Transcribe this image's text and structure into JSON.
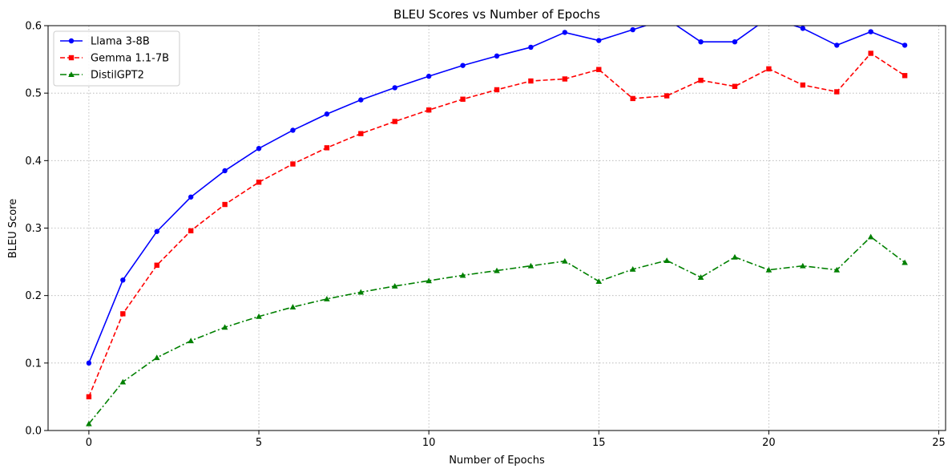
{
  "chart_data": {
    "type": "line",
    "title": "BLEU Scores vs Number of Epochs",
    "xlabel": "Number of Epochs",
    "ylabel": "BLEU Score",
    "xlim": [
      -1.2,
      25.2
    ],
    "ylim": [
      0,
      0.6
    ],
    "xticks": [
      0,
      5,
      10,
      15,
      20,
      25
    ],
    "yticks": [
      0.0,
      0.1,
      0.2,
      0.3,
      0.4,
      0.5,
      0.6
    ],
    "xtick_labels": [
      "0",
      "5",
      "10",
      "15",
      "20",
      "25"
    ],
    "ytick_labels": [
      "0.0",
      "0.1",
      "0.2",
      "0.3",
      "0.4",
      "0.5",
      "0.6"
    ],
    "grid": true,
    "legend_position": "top-left",
    "x": [
      0,
      1,
      2,
      3,
      4,
      5,
      6,
      7,
      8,
      9,
      10,
      11,
      12,
      13,
      14,
      15,
      16,
      17,
      18,
      19,
      20,
      21,
      22,
      23,
      24
    ],
    "series": [
      {
        "name": "Llama 3-8B",
        "color": "#0000ff",
        "marker": "circle",
        "line_style": "solid",
        "values": [
          0.1,
          0.223,
          0.295,
          0.346,
          0.385,
          0.418,
          0.445,
          0.469,
          0.49,
          0.508,
          0.525,
          0.541,
          0.555,
          0.568,
          0.59,
          0.578,
          0.594,
          0.61,
          0.576,
          0.576,
          0.612,
          0.596,
          0.571,
          0.591,
          0.571
        ]
      },
      {
        "name": "Gemma 1.1-7B",
        "color": "#ff0000",
        "marker": "square",
        "line_style": "dashed",
        "values": [
          0.05,
          0.173,
          0.245,
          0.296,
          0.335,
          0.368,
          0.395,
          0.419,
          0.44,
          0.458,
          0.475,
          0.491,
          0.505,
          0.518,
          0.521,
          0.535,
          0.492,
          0.496,
          0.519,
          0.51,
          0.536,
          0.512,
          0.502,
          0.559,
          0.526
        ]
      },
      {
        "name": "DistilGPT2",
        "color": "#008000",
        "marker": "triangle",
        "line_style": "dashdot",
        "values": [
          0.01,
          0.072,
          0.108,
          0.133,
          0.153,
          0.169,
          0.183,
          0.195,
          0.205,
          0.214,
          0.222,
          0.23,
          0.237,
          0.244,
          0.251,
          0.221,
          0.239,
          0.252,
          0.227,
          0.257,
          0.238,
          0.244,
          0.238,
          0.287,
          0.249
        ]
      }
    ]
  }
}
